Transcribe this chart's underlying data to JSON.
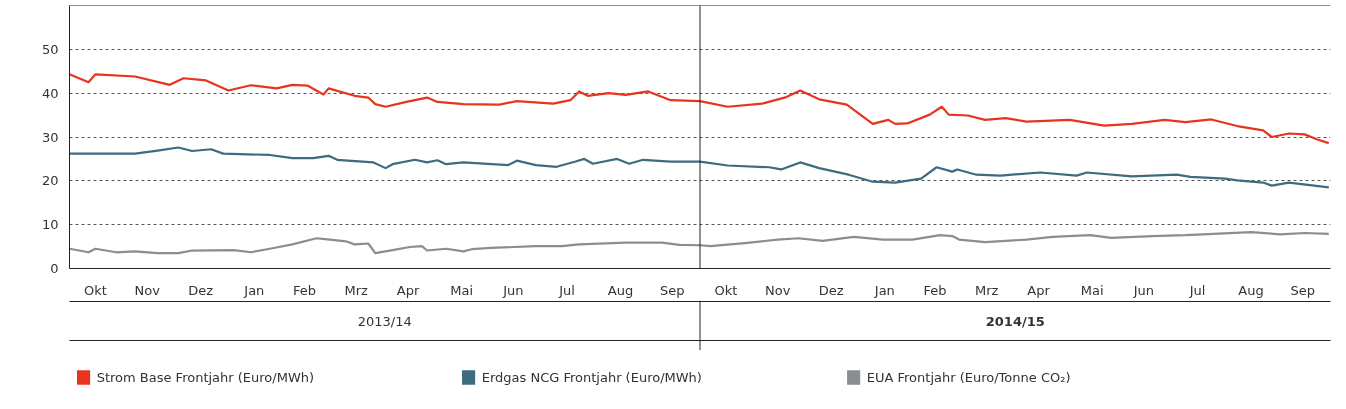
{
  "chart_data": {
    "type": "line",
    "xlim": [
      "2013-10-01",
      "2015-10-01"
    ],
    "ylim": [
      0,
      60
    ],
    "xticks": [
      {
        "value": "2013-10-16",
        "label": "Okt"
      },
      {
        "value": "2013-11-15",
        "label": "Nov"
      },
      {
        "value": "2013-12-16",
        "label": "Dez"
      },
      {
        "value": "2014-01-16",
        "label": "Jan"
      },
      {
        "value": "2014-02-14",
        "label": "Feb"
      },
      {
        "value": "2014-03-16",
        "label": "Mrz"
      },
      {
        "value": "2014-04-15",
        "label": "Apr"
      },
      {
        "value": "2014-05-16",
        "label": "Mai"
      },
      {
        "value": "2014-06-15",
        "label": "Jun"
      },
      {
        "value": "2014-07-16",
        "label": "Jul"
      },
      {
        "value": "2014-08-16",
        "label": "Aug"
      },
      {
        "value": "2014-09-15",
        "label": "Sep"
      },
      {
        "value": "2014-10-16",
        "label": "Okt"
      },
      {
        "value": "2014-11-15",
        "label": "Nov"
      },
      {
        "value": "2014-12-16",
        "label": "Dez"
      },
      {
        "value": "2015-01-16",
        "label": "Jan"
      },
      {
        "value": "2015-02-14",
        "label": "Feb"
      },
      {
        "value": "2015-03-16",
        "label": "Mrz"
      },
      {
        "value": "2015-04-15",
        "label": "Apr"
      },
      {
        "value": "2015-05-16",
        "label": "Mai"
      },
      {
        "value": "2015-06-15",
        "label": "Jun"
      },
      {
        "value": "2015-07-16",
        "label": "Jul"
      },
      {
        "value": "2015-08-16",
        "label": "Aug"
      },
      {
        "value": "2015-09-15",
        "label": "Sep"
      }
    ],
    "yticks": [
      0,
      10,
      20,
      30,
      40,
      50
    ],
    "grid": "y",
    "legend": "bottom",
    "ref_lines": [
      {
        "axis": "x",
        "value": "2014-10-01",
        "color": "#222222"
      }
    ],
    "annotations": [
      "2013/14",
      "2014/15"
    ],
    "series": [
      {
        "name": "Strom Base Frontjahr (Euro/MWh)",
        "color": "#e8341f",
        "x": [
          "2013-10-01",
          "2013-10-12",
          "2013-10-16",
          "2013-11-08",
          "2013-11-28",
          "2013-12-06",
          "2013-12-19",
          "2014-01-01",
          "2014-01-14",
          "2014-01-29",
          "2014-02-07",
          "2014-02-16",
          "2014-02-25",
          "2014-02-28",
          "2014-03-15",
          "2014-03-23",
          "2014-03-27",
          "2014-04-02",
          "2014-04-14",
          "2014-04-26",
          "2014-05-02",
          "2014-05-17",
          "2014-06-07",
          "2014-06-17",
          "2014-07-08",
          "2014-07-18",
          "2014-07-23",
          "2014-07-28",
          "2014-08-09",
          "2014-08-19",
          "2014-09-01",
          "2014-09-14",
          "2014-10-01",
          "2014-10-17",
          "2014-11-06",
          "2014-11-20",
          "2014-11-28",
          "2014-12-09",
          "2014-12-25",
          "2015-01-09",
          "2015-01-18",
          "2015-01-22",
          "2015-01-29",
          "2015-02-11",
          "2015-02-18",
          "2015-02-22",
          "2015-03-05",
          "2015-03-15",
          "2015-03-27",
          "2015-04-08",
          "2015-05-03",
          "2015-05-23",
          "2015-06-08",
          "2015-06-27",
          "2015-07-09",
          "2015-07-24",
          "2015-08-08",
          "2015-08-23",
          "2015-08-28",
          "2015-09-07",
          "2015-09-16",
          "2015-09-23",
          "2015-09-30"
        ],
        "values": [
          44.3,
          42.5,
          44.3,
          43.8,
          41.9,
          43.4,
          42.9,
          40.6,
          41.8,
          41.1,
          41.9,
          41.7,
          39.7,
          41.1,
          39.4,
          39.0,
          37.5,
          36.9,
          38.0,
          39.0,
          38.0,
          37.5,
          37.4,
          38.2,
          37.6,
          38.4,
          40.4,
          39.4,
          40.0,
          39.6,
          40.4,
          38.4,
          38.2,
          36.9,
          37.6,
          39.1,
          40.6,
          38.6,
          37.4,
          33.0,
          33.9,
          33.0,
          33.1,
          35.1,
          36.9,
          35.1,
          34.9,
          33.9,
          34.3,
          33.5,
          33.9,
          32.6,
          33.0,
          33.9,
          33.4,
          34.0,
          32.5,
          31.5,
          30.0,
          30.8,
          30.6,
          29.5,
          28.6
        ]
      },
      {
        "name": "Erdgas NCG Frontjahr (Euro/MWh)",
        "color": "#3e6b80",
        "x": [
          "2013-10-01",
          "2013-11-08",
          "2013-11-21",
          "2013-12-03",
          "2013-12-11",
          "2013-12-22",
          "2013-12-29",
          "2014-01-25",
          "2014-02-07",
          "2014-02-19",
          "2014-02-28",
          "2014-03-05",
          "2014-03-26",
          "2014-04-02",
          "2014-04-06",
          "2014-04-19",
          "2014-04-26",
          "2014-05-02",
          "2014-05-07",
          "2014-05-17",
          "2014-06-12",
          "2014-06-17",
          "2014-06-28",
          "2014-07-10",
          "2014-07-21",
          "2014-07-26",
          "2014-07-31",
          "2014-08-14",
          "2014-08-21",
          "2014-08-29",
          "2014-09-14",
          "2014-10-01",
          "2014-10-17",
          "2014-11-10",
          "2014-11-17",
          "2014-11-28",
          "2014-12-09",
          "2014-12-26",
          "2015-01-09",
          "2015-01-22",
          "2015-02-06",
          "2015-02-15",
          "2015-02-24",
          "2015-02-27",
          "2015-03-10",
          "2015-03-24",
          "2015-04-16",
          "2015-05-07",
          "2015-05-13",
          "2015-06-08",
          "2015-07-04",
          "2015-07-12",
          "2015-08-01",
          "2015-08-08",
          "2015-08-23",
          "2015-08-28",
          "2015-09-07",
          "2015-09-30"
        ],
        "values": [
          26.2,
          26.2,
          26.9,
          27.6,
          26.8,
          27.2,
          26.2,
          25.9,
          25.2,
          25.2,
          25.7,
          24.8,
          24.2,
          22.9,
          23.8,
          24.8,
          24.2,
          24.7,
          23.8,
          24.2,
          23.6,
          24.6,
          23.6,
          23.2,
          24.4,
          25.0,
          23.9,
          25.0,
          23.9,
          24.8,
          24.4,
          24.4,
          23.5,
          23.1,
          22.6,
          24.2,
          22.9,
          21.4,
          19.8,
          19.6,
          20.5,
          23.1,
          22.1,
          22.6,
          21.4,
          21.2,
          21.9,
          21.2,
          21.9,
          21.0,
          21.4,
          20.9,
          20.5,
          20.1,
          19.6,
          18.9,
          19.6,
          18.5
        ]
      },
      {
        "name": "EUA Frontjahr (Euro/Tonne CO₂)",
        "color": "#8a8d92",
        "x": [
          "2013-10-01",
          "2013-10-12",
          "2013-10-16",
          "2013-10-28",
          "2013-11-08",
          "2013-11-21",
          "2013-12-03",
          "2013-12-11",
          "2014-01-04",
          "2014-01-14",
          "2014-01-25",
          "2014-02-07",
          "2014-02-21",
          "2014-02-26",
          "2014-03-10",
          "2014-03-15",
          "2014-03-23",
          "2014-03-27",
          "2014-04-06",
          "2014-04-16",
          "2014-04-23",
          "2014-04-26",
          "2014-05-07",
          "2014-05-17",
          "2014-05-22",
          "2014-06-02",
          "2014-06-28",
          "2014-07-13",
          "2014-07-23",
          "2014-08-19",
          "2014-09-09",
          "2014-09-19",
          "2014-10-01",
          "2014-10-07",
          "2014-10-27",
          "2014-11-15",
          "2014-11-27",
          "2014-12-11",
          "2014-12-29",
          "2015-01-15",
          "2015-02-01",
          "2015-02-17",
          "2015-02-24",
          "2015-02-28",
          "2015-03-15",
          "2015-04-08",
          "2015-04-23",
          "2015-05-15",
          "2015-05-27",
          "2015-06-20",
          "2015-07-09",
          "2015-07-19",
          "2015-08-16",
          "2015-09-02",
          "2015-09-16",
          "2015-09-30"
        ],
        "values": [
          4.5,
          3.7,
          4.5,
          3.7,
          3.9,
          3.5,
          3.5,
          4.1,
          4.2,
          3.7,
          4.5,
          5.5,
          6.9,
          6.7,
          6.2,
          5.5,
          5.7,
          3.5,
          4.2,
          4.9,
          5.1,
          4.1,
          4.5,
          3.9,
          4.4,
          4.7,
          5.1,
          5.1,
          5.5,
          5.9,
          5.9,
          5.4,
          5.3,
          5.1,
          5.8,
          6.6,
          6.9,
          6.3,
          7.2,
          6.6,
          6.6,
          7.6,
          7.4,
          6.6,
          6.0,
          6.6,
          7.2,
          7.6,
          7.0,
          7.4,
          7.6,
          7.8,
          8.3,
          7.8,
          8.1,
          7.9
        ]
      }
    ]
  }
}
